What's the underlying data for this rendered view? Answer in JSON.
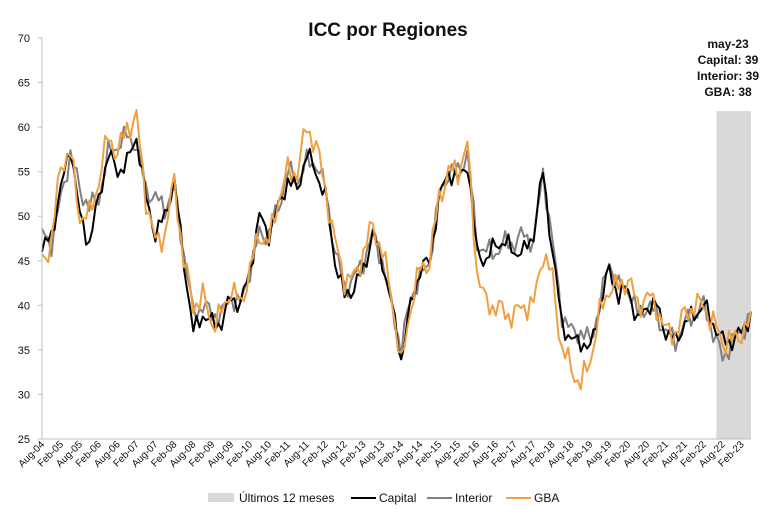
{
  "chart_data": {
    "type": "line",
    "title": "ICC por Regiones",
    "ylim": [
      25,
      70
    ],
    "yticks": [
      25,
      30,
      35,
      40,
      45,
      50,
      55,
      60,
      65,
      70
    ],
    "x_start": "Aug-04",
    "x_end": "May-23",
    "xtick_labels": [
      "Aug-04",
      "Feb-05",
      "Aug-05",
      "Feb-06",
      "Aug-06",
      "Feb-07",
      "Aug-07",
      "Feb-08",
      "Aug-08",
      "Feb-09",
      "Aug-09",
      "Feb-10",
      "Aug-10",
      "Feb-11",
      "Aug-11",
      "Feb-12",
      "Aug-12",
      "Feb-13",
      "Aug-13",
      "Feb-14",
      "Aug-14",
      "Feb-15",
      "Aug-15",
      "Feb-16",
      "Aug-16",
      "Feb-17",
      "Aug-17",
      "Feb-18",
      "Aug-18",
      "Feb-19",
      "Aug-19",
      "Feb-20",
      "Aug-20",
      "Feb-21",
      "Aug-21",
      "Feb-22",
      "Aug-22",
      "Feb-23"
    ],
    "highlight": {
      "label": "Últimos 12 meses",
      "from": "Jun-22",
      "to": "May-23",
      "color": "#d9d9d9"
    },
    "annotation": [
      "may-23",
      "Capital: 39",
      "Interior: 39",
      "GBA: 38"
    ],
    "legend": [
      "Últimos 12 meses",
      "Capital",
      "Interior",
      "GBA"
    ],
    "legend_position": "bottom",
    "grid": false,
    "anchors": [
      [
        "Aug-04",
        46,
        48,
        45
      ],
      [
        "Nov-04",
        48,
        47,
        47
      ],
      [
        "Feb-05",
        53,
        52,
        56
      ],
      [
        "May-05",
        58,
        57,
        57
      ],
      [
        "Aug-05",
        50,
        53,
        50
      ],
      [
        "Nov-05",
        47,
        51,
        50
      ],
      [
        "Feb-06",
        52,
        52,
        54
      ],
      [
        "May-06",
        57,
        57,
        59
      ],
      [
        "Aug-06",
        55,
        58,
        57
      ],
      [
        "Nov-06",
        56,
        59,
        60
      ],
      [
        "Feb-07",
        59,
        58,
        61
      ],
      [
        "May-07",
        52,
        53,
        52
      ],
      [
        "Aug-07",
        48,
        52,
        47
      ],
      [
        "Nov-07",
        50,
        51,
        48
      ],
      [
        "Feb-08",
        54,
        53,
        54
      ],
      [
        "May-08",
        45,
        46,
        45
      ],
      [
        "Aug-08",
        37,
        39,
        40
      ],
      [
        "Nov-08",
        39,
        40,
        41
      ],
      [
        "Feb-09",
        38,
        39,
        38
      ],
      [
        "May-09",
        38,
        39,
        39
      ],
      [
        "Aug-09",
        41,
        41,
        42
      ],
      [
        "Nov-09",
        40,
        40,
        40
      ],
      [
        "Feb-10",
        44,
        44,
        44
      ],
      [
        "May-10",
        50,
        48,
        48
      ],
      [
        "Aug-10",
        48,
        48,
        47
      ],
      [
        "Nov-10",
        51,
        51,
        52
      ],
      [
        "Feb-11",
        54,
        55,
        55
      ],
      [
        "May-11",
        53,
        54,
        55
      ],
      [
        "Aug-11",
        57,
        56,
        60
      ],
      [
        "Nov-11",
        55,
        56,
        58
      ],
      [
        "Feb-12",
        52,
        53,
        53
      ],
      [
        "May-12",
        45,
        46,
        47
      ],
      [
        "Aug-12",
        41,
        42,
        43
      ],
      [
        "Nov-12",
        42,
        43,
        43
      ],
      [
        "Feb-13",
        44,
        45,
        46
      ],
      [
        "May-13",
        48,
        48,
        49
      ],
      [
        "Aug-13",
        45,
        45,
        46
      ],
      [
        "Nov-13",
        40,
        40,
        41
      ],
      [
        "Feb-14",
        34,
        35,
        33
      ],
      [
        "May-14",
        40,
        41,
        40
      ],
      [
        "Aug-14",
        44,
        43,
        44
      ],
      [
        "Nov-14",
        45,
        45,
        45
      ],
      [
        "Feb-15",
        52,
        52,
        52
      ],
      [
        "May-15",
        55,
        55,
        55
      ],
      [
        "Aug-15",
        54,
        55,
        55
      ],
      [
        "Nov-15",
        56,
        57,
        58
      ],
      [
        "Feb-16",
        46,
        47,
        44
      ],
      [
        "May-16",
        45,
        46,
        40
      ],
      [
        "Aug-16",
        47,
        46,
        40
      ],
      [
        "Nov-16",
        47,
        47,
        39
      ],
      [
        "Feb-17",
        46,
        47,
        39
      ],
      [
        "May-17",
        46,
        48,
        40
      ],
      [
        "Aug-17",
        48,
        47,
        40
      ],
      [
        "Nov-17",
        55,
        55,
        46
      ],
      [
        "Feb-18",
        46,
        47,
        43
      ],
      [
        "May-18",
        38,
        39,
        35
      ],
      [
        "Aug-18",
        36,
        37,
        33
      ],
      [
        "Nov-18",
        36,
        37,
        31
      ],
      [
        "Feb-19",
        35,
        36,
        34
      ],
      [
        "May-19",
        40,
        40,
        39
      ],
      [
        "Aug-19",
        44,
        45,
        42
      ],
      [
        "Nov-19",
        41,
        42,
        42
      ],
      [
        "Feb-20",
        42,
        42,
        43
      ],
      [
        "May-20",
        38,
        39,
        40
      ],
      [
        "Aug-20",
        40,
        40,
        41
      ],
      [
        "Nov-20",
        40,
        39,
        40
      ],
      [
        "Feb-21",
        37,
        37,
        37
      ],
      [
        "May-21",
        36,
        36,
        37
      ],
      [
        "Aug-21",
        38,
        38,
        39
      ],
      [
        "Nov-21",
        39,
        39,
        40
      ],
      [
        "Feb-22",
        40,
        40,
        40
      ],
      [
        "May-22",
        38,
        37,
        38
      ],
      [
        "Aug-22",
        36,
        34,
        36
      ],
      [
        "Nov-22",
        36,
        36,
        36
      ],
      [
        "Feb-23",
        37,
        37,
        37
      ],
      [
        "May-23",
        39,
        39,
        38
      ]
    ],
    "series": [
      {
        "name": "Capital",
        "color": "#000000"
      },
      {
        "name": "Interior",
        "color": "#808080"
      },
      {
        "name": "GBA",
        "color": "#f0a040"
      }
    ]
  }
}
